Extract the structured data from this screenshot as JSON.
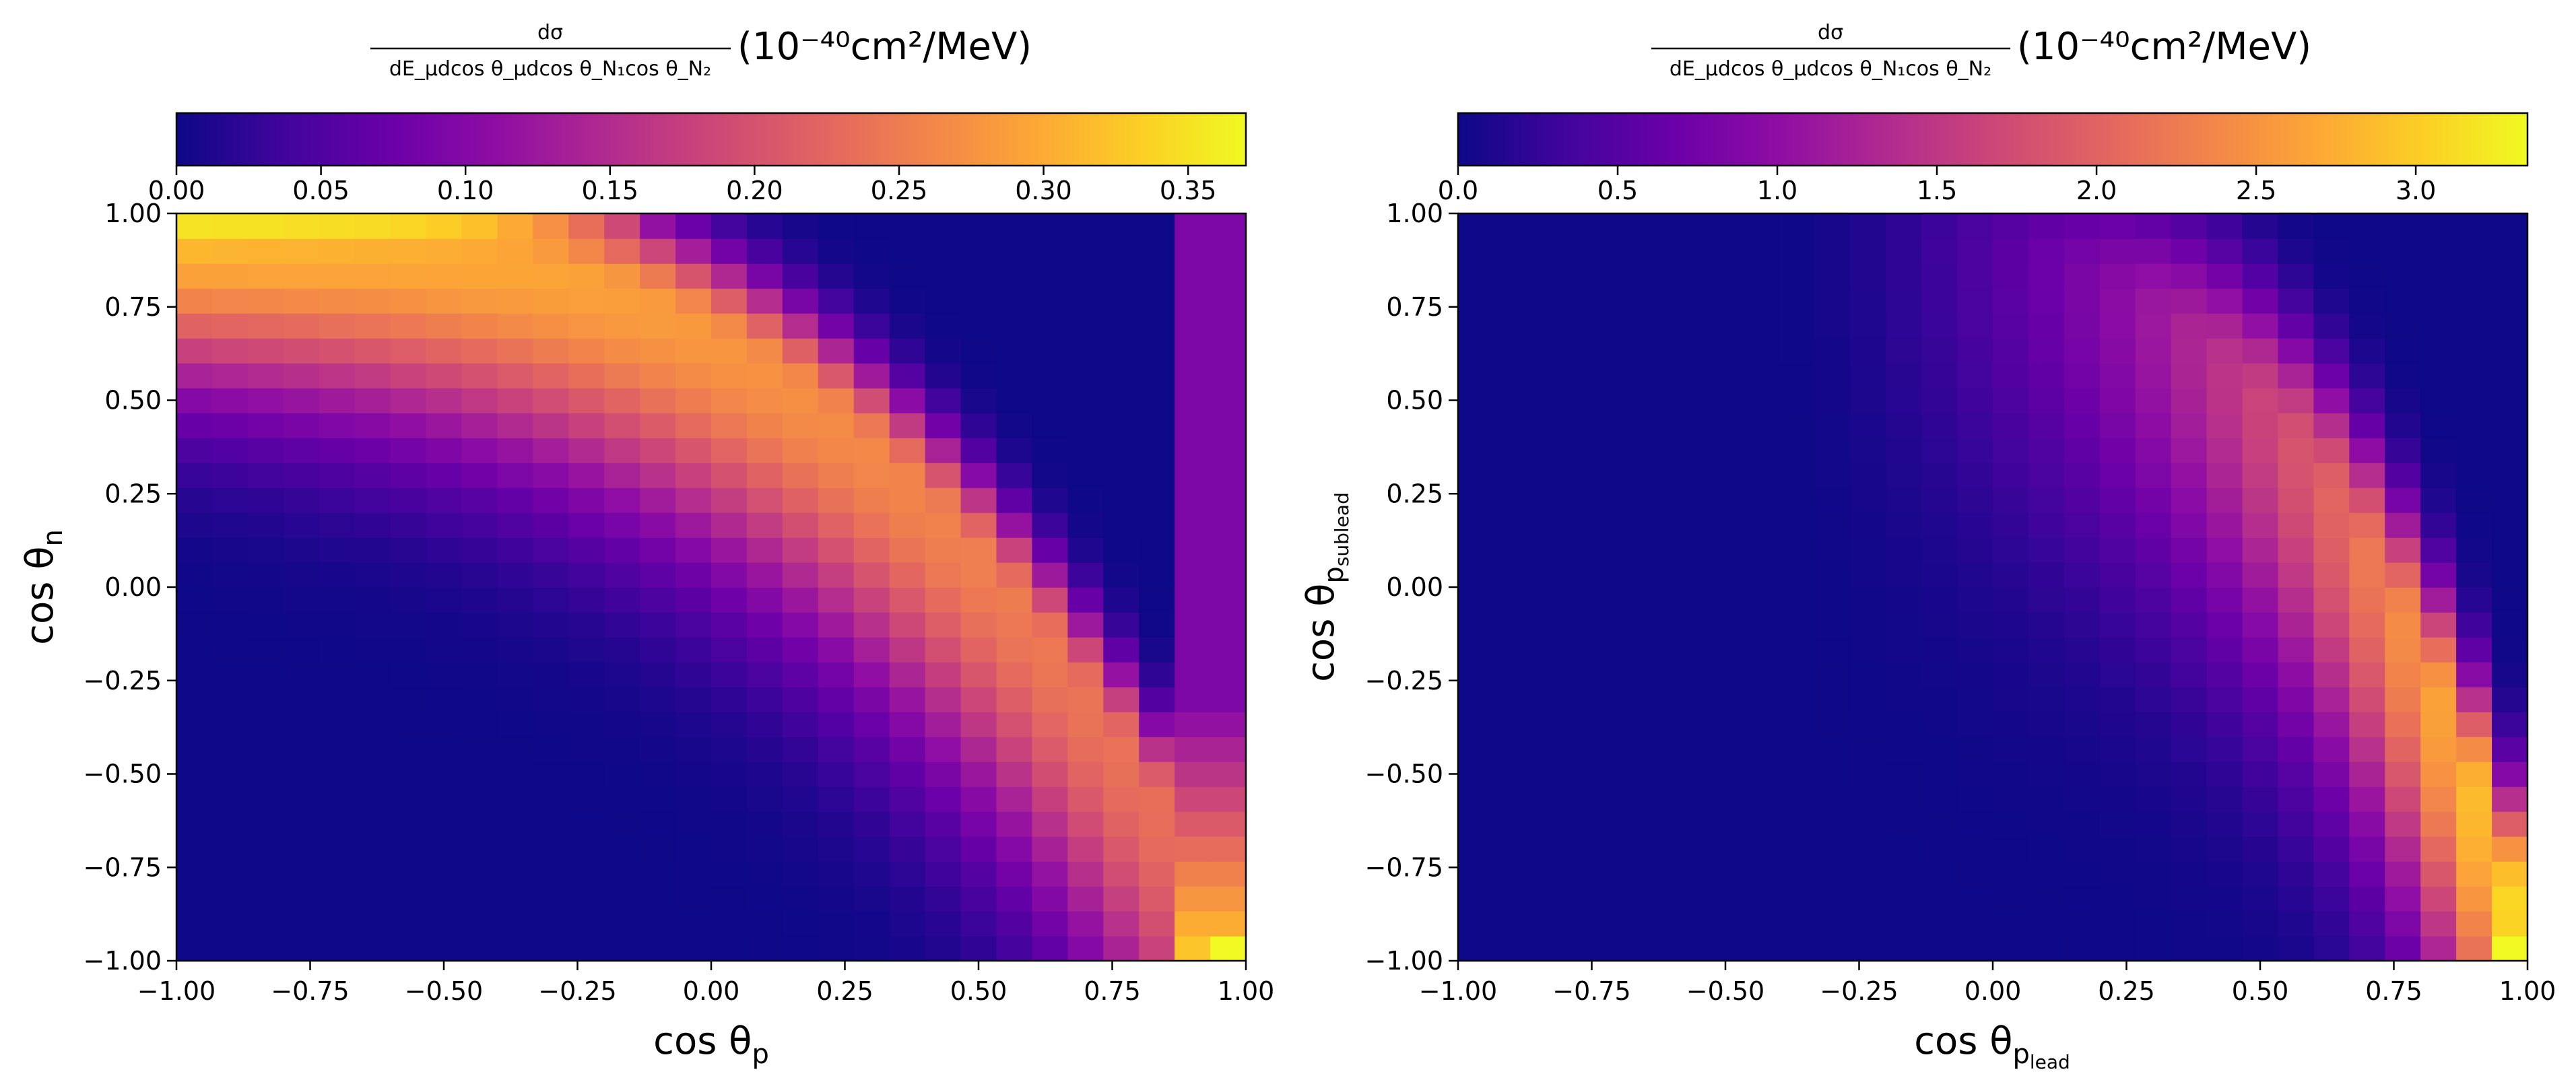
{
  "chart_data": [
    {
      "type": "heatmap",
      "colormap": "plasma",
      "title": "",
      "colorbar": {
        "label_text": "dσ / dE_μ dcosθ_μ dcosθ_N1 cosθ_N2",
        "label_numerator": "dσ",
        "label_denominator": "dE_μdcos θ_μdcos θ_N₁cos θ_N₂",
        "label_units": "(10⁻⁴⁰cm²/MeV)",
        "range": [
          0.0,
          0.37
        ],
        "ticks": [
          0.0,
          0.05,
          0.1,
          0.15,
          0.2,
          0.25,
          0.3,
          0.35
        ],
        "tick_labels": [
          "0.00",
          "0.05",
          "0.10",
          "0.15",
          "0.20",
          "0.25",
          "0.30",
          "0.35"
        ],
        "position": "top"
      },
      "xlabel": "cos θ_p",
      "xlabel_main": "cos θ",
      "xlabel_sub": "p",
      "ylabel": "cos θ_n",
      "ylabel_main": "cos θ",
      "ylabel_sub": "n",
      "xlim": [
        -1.0,
        1.0
      ],
      "ylim": [
        -1.0,
        1.0
      ],
      "x_ticks": [
        -1.0,
        -0.75,
        -0.5,
        -0.25,
        0.0,
        0.25,
        0.5,
        0.75,
        1.0
      ],
      "x_tick_labels": [
        "−1.00",
        "−0.75",
        "−0.50",
        "−0.25",
        "0.00",
        "0.25",
        "0.50",
        "0.75",
        "1.00"
      ],
      "y_ticks": [
        -1.0,
        -0.75,
        -0.5,
        -0.25,
        0.0,
        0.25,
        0.5,
        0.75,
        1.0
      ],
      "y_tick_labels": [
        "−1.00",
        "−0.75",
        "−0.50",
        "−0.25",
        "0.00",
        "0.25",
        "0.50",
        "0.75",
        "1.00"
      ],
      "bins": 30,
      "distribution": {
        "description_of_ridge": "band along cosθ_n ≈ 0.96 − 1.96·((1+cosθ_p)/2)^2.8, peak values near cosθ_p≈-0.6..0 at cosθ_n≈0.8..1.0 and at cosθ_p≈0.97, cosθ_n≈-0.97",
        "peak_value": 0.37,
        "ridge_peak_points": [
          {
            "x": -0.75,
            "y": 0.97,
            "value": 0.33
          },
          {
            "x": -0.45,
            "y": 0.87,
            "value": 0.31
          },
          {
            "x": -0.05,
            "y": 0.78,
            "value": 0.28
          },
          {
            "x": 0.3,
            "y": 0.6,
            "value": 0.24
          },
          {
            "x": 0.6,
            "y": 0.2,
            "value": 0.23
          },
          {
            "x": 0.8,
            "y": -0.3,
            "value": 0.22
          },
          {
            "x": 0.97,
            "y": -0.97,
            "value": 0.37
          }
        ]
      }
    },
    {
      "type": "heatmap",
      "colormap": "plasma",
      "title": "",
      "colorbar": {
        "label_text": "dσ / dE_μ dcosθ_μ dcosθ_N1 cosθ_N2",
        "label_numerator": "dσ",
        "label_denominator": "dE_μdcos θ_μdcos θ_N₁cos θ_N₂",
        "label_units": "(10⁻⁴⁰cm²/MeV)",
        "range": [
          0.0,
          3.35
        ],
        "ticks": [
          0.0,
          0.5,
          1.0,
          1.5,
          2.0,
          2.5,
          3.0
        ],
        "tick_labels": [
          "0.0",
          "0.5",
          "1.0",
          "1.5",
          "2.0",
          "2.5",
          "3.0"
        ],
        "position": "top"
      },
      "xlabel": "cos θ_p_lead",
      "xlabel_main": "cos θ",
      "xlabel_sub": "p",
      "xlabel_subsub": "lead",
      "ylabel": "cos θ_p_sublead",
      "ylabel_main": "cos θ",
      "ylabel_sub": "p",
      "ylabel_subsub": "sublead",
      "xlim": [
        -1.0,
        1.0
      ],
      "ylim": [
        -1.0,
        1.0
      ],
      "x_ticks": [
        -1.0,
        -0.75,
        -0.5,
        -0.25,
        0.0,
        0.25,
        0.5,
        0.75,
        1.0
      ],
      "x_tick_labels": [
        "−1.00",
        "−0.75",
        "−0.50",
        "−0.25",
        "0.00",
        "0.25",
        "0.50",
        "0.75",
        "1.00"
      ],
      "y_ticks": [
        -1.0,
        -0.75,
        -0.5,
        -0.25,
        0.0,
        0.25,
        0.5,
        0.75,
        1.0
      ],
      "y_tick_labels": [
        "−1.00",
        "−0.75",
        "−0.50",
        "−0.25",
        "0.00",
        "0.25",
        "0.50",
        "0.75",
        "1.00"
      ],
      "bins": 30,
      "distribution": {
        "description_of_ridge": "band along cosθ_p_sublead ≈ 0.95 − 1.95·((1+cosθ_p_lead)/2)^5, peak values near cosθ_p_lead≈0.8..0.97 at cosθ_p_sublead≈-0.2..-1.0",
        "peak_value": 3.35,
        "ridge_peak_points": [
          {
            "x": 0.3,
            "y": 0.6,
            "value": 0.9
          },
          {
            "x": 0.55,
            "y": 0.45,
            "value": 1.4
          },
          {
            "x": 0.7,
            "y": 0.1,
            "value": 2.2
          },
          {
            "x": 0.82,
            "y": -0.25,
            "value": 2.8
          },
          {
            "x": 0.9,
            "y": -0.6,
            "value": 2.9
          },
          {
            "x": 0.97,
            "y": -0.97,
            "value": 3.35
          }
        ]
      }
    }
  ]
}
